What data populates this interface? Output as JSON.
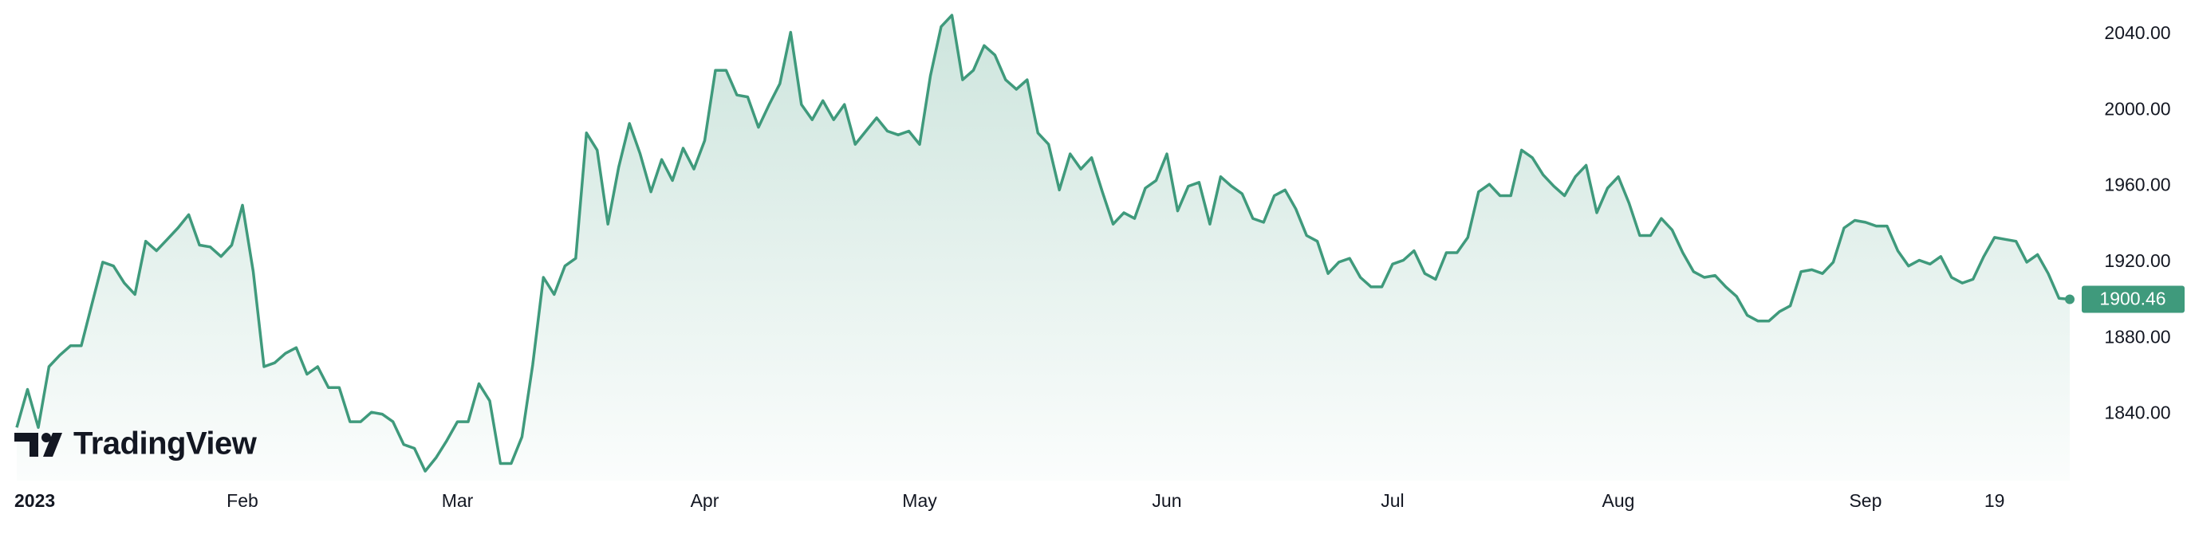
{
  "chart_data": {
    "type": "line",
    "categories": [
      "2023",
      null,
      null,
      null,
      null,
      null,
      null,
      null,
      null,
      null,
      null,
      null,
      null,
      null,
      null,
      null,
      null,
      null,
      null,
      null,
      null,
      "Feb",
      null,
      null,
      null,
      null,
      null,
      null,
      null,
      null,
      null,
      null,
      null,
      null,
      null,
      null,
      null,
      null,
      null,
      null,
      null,
      "Mar",
      null,
      null,
      null,
      null,
      null,
      null,
      null,
      null,
      null,
      null,
      null,
      null,
      null,
      null,
      null,
      null,
      null,
      null,
      null,
      null,
      null,
      null,
      "Apr",
      null,
      null,
      null,
      null,
      null,
      null,
      null,
      null,
      null,
      null,
      null,
      null,
      null,
      null,
      null,
      null,
      null,
      null,
      null,
      "May",
      null,
      null,
      null,
      null,
      null,
      null,
      null,
      null,
      null,
      null,
      null,
      null,
      null,
      null,
      null,
      null,
      null,
      null,
      null,
      null,
      null,
      null,
      "Jun",
      null,
      null,
      null,
      null,
      null,
      null,
      null,
      null,
      null,
      null,
      null,
      null,
      null,
      null,
      null,
      null,
      null,
      null,
      null,
      null,
      "Jul",
      null,
      null,
      null,
      null,
      null,
      null,
      null,
      null,
      null,
      null,
      null,
      null,
      null,
      null,
      null,
      null,
      null,
      null,
      null,
      null,
      "Aug",
      null,
      null,
      null,
      null,
      null,
      null,
      null,
      null,
      null,
      null,
      null,
      null,
      null,
      null,
      null,
      null,
      null,
      null,
      null,
      null,
      null,
      null,
      "Sep",
      null,
      null,
      null,
      null,
      null,
      null,
      null,
      null,
      null,
      null,
      null,
      "19",
      null,
      null,
      null,
      null,
      null,
      null,
      null
    ],
    "values": [
      1833,
      1853,
      1833,
      1865,
      1871,
      1876,
      1876,
      1898,
      1920,
      1918,
      1909,
      1903,
      1931,
      1926,
      1932,
      1938,
      1945,
      1929,
      1928,
      1923,
      1929,
      1950,
      1915,
      1865,
      1867,
      1872,
      1875,
      1861,
      1865,
      1854,
      1854,
      1836,
      1836,
      1841,
      1840,
      1836,
      1824,
      1822,
      1810,
      1817,
      1826,
      1836,
      1836,
      1856,
      1847,
      1814,
      1814,
      1828,
      1866,
      1912,
      1903,
      1918,
      1922,
      1988,
      1979,
      1940,
      1970,
      1993,
      1977,
      1957,
      1974,
      1963,
      1980,
      1969,
      1984,
      2021,
      2021,
      2008,
      2007,
      1991,
      2003,
      2014,
      2041,
      2003,
      1995,
      2005,
      1995,
      2003,
      1982,
      1989,
      1996,
      1989,
      1987,
      1989,
      1982,
      2018,
      2044,
      2050,
      2016,
      2021,
      2034,
      2029,
      2016,
      2011,
      2016,
      1988,
      1982,
      1958,
      1977,
      1969,
      1975,
      1957,
      1940,
      1946,
      1943,
      1959,
      1963,
      1977,
      1947,
      1960,
      1962,
      1940,
      1965,
      1960,
      1956,
      1943,
      1941,
      1955,
      1958,
      1948,
      1934,
      1931,
      1914,
      1920,
      1922,
      1912,
      1907,
      1907,
      1919,
      1921,
      1926,
      1914,
      1911,
      1925,
      1925,
      1933,
      1957,
      1961,
      1955,
      1955,
      1979,
      1975,
      1966,
      1960,
      1955,
      1965,
      1971,
      1946,
      1959,
      1965,
      1951,
      1934,
      1934,
      1943,
      1937,
      1925,
      1915,
      1912,
      1913,
      1907,
      1902,
      1892,
      1889,
      1889,
      1894,
      1897,
      1915,
      1916,
      1914,
      1920,
      1938,
      1942,
      1941,
      1939,
      1939,
      1926,
      1918,
      1921,
      1919,
      1923,
      1912,
      1909,
      1911,
      1923,
      1933,
      1932,
      1931,
      1920,
      1924,
      1914,
      1901,
      1900.46
    ],
    "color": "#3f9a7c",
    "ylim": [
      1805,
      2058
    ],
    "yticks": [
      {
        "value": 1840,
        "label": "1840.00"
      },
      {
        "value": 1880,
        "label": "1880.00"
      },
      {
        "value": 1920,
        "label": "1920.00"
      },
      {
        "value": 1960,
        "label": "1960.00"
      },
      {
        "value": 2000,
        "label": "2000.00"
      },
      {
        "value": 2040,
        "label": "2040.00"
      }
    ],
    "grid": false,
    "brand": "TradingView"
  }
}
